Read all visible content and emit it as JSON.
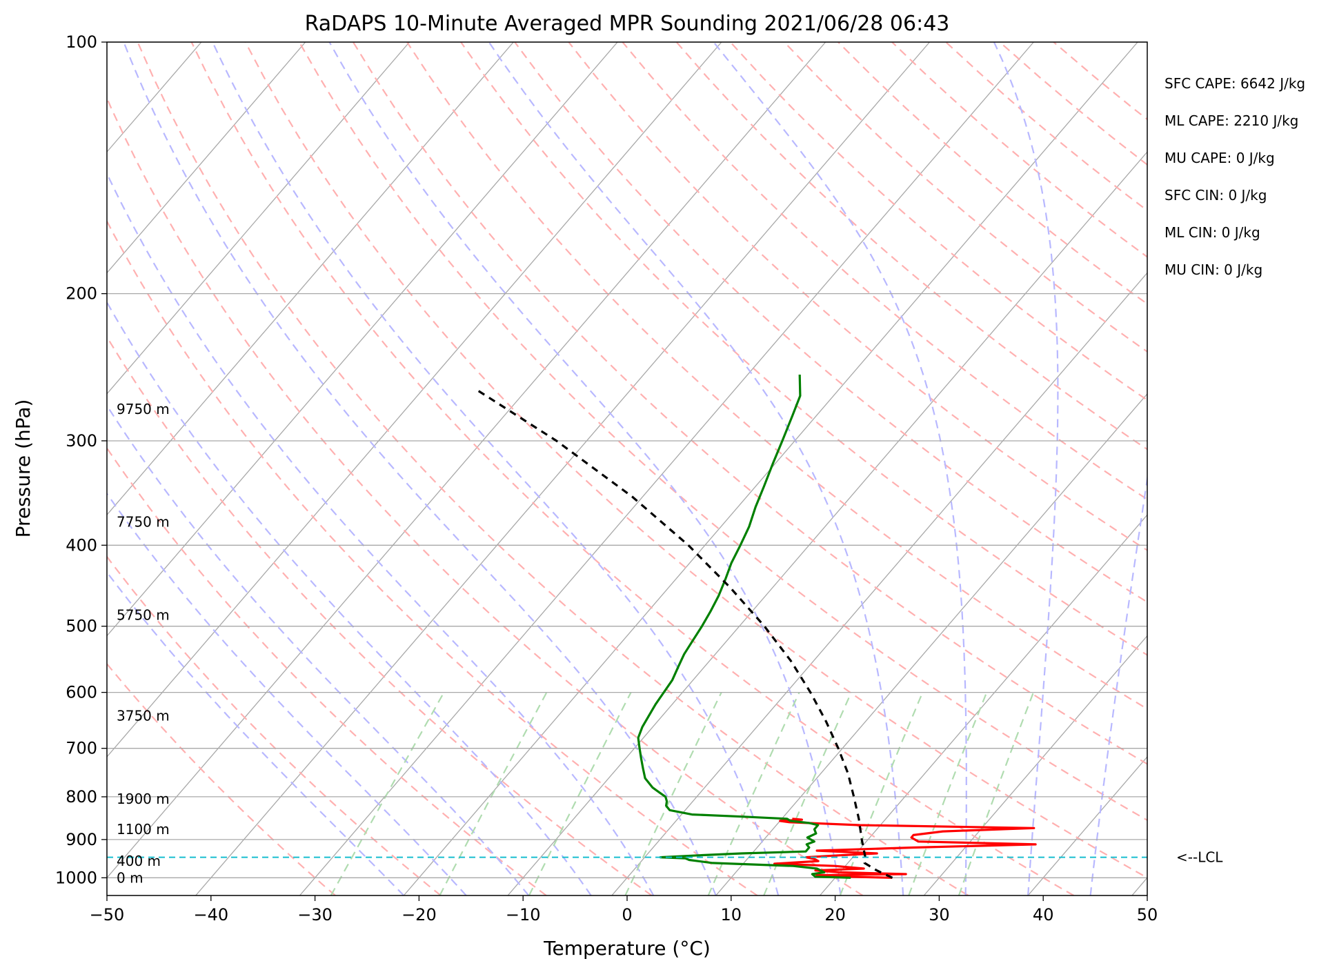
{
  "chart_data": {
    "type": "line",
    "title": "RaDAPS 10-Minute Averaged MPR Sounding 2021/06/28 06:43",
    "xlabel": "Temperature (°C)",
    "ylabel": "Pressure (hPa)",
    "xlim": [
      -50,
      50
    ],
    "ylim": [
      1050,
      100
    ],
    "y_scale": "log",
    "x_ticks": [
      -50,
      -40,
      -30,
      -20,
      -10,
      0,
      10,
      20,
      30,
      40,
      50
    ],
    "x_tick_labels": [
      "−50",
      "−40",
      "−30",
      "−20",
      "−10",
      "0",
      "10",
      "20",
      "30",
      "40",
      "50"
    ],
    "y_ticks": [
      100,
      200,
      300,
      400,
      500,
      600,
      700,
      800,
      900,
      1000
    ],
    "y_tick_labels": [
      "100",
      "200",
      "300",
      "400",
      "500",
      "600",
      "700",
      "800",
      "900",
      "1000"
    ],
    "grid": true,
    "background_lines": [
      "isotherms (skewed)",
      "dry adiabats",
      "moist adiabats",
      "mixing ratio lines"
    ],
    "series": [
      {
        "name": "",
        "color": "#ff0000",
        "pressure": [
          1000,
          997,
          993,
          990,
          985,
          980,
          975,
          968,
          962,
          955,
          950,
          945,
          940,
          935,
          928,
          920,
          912,
          905,
          900,
          895,
          889,
          880,
          872,
          865,
          858,
          855,
          852,
          850
        ],
        "temperature": [
          25.5,
          21,
          18,
          26.5,
          20,
          17.5,
          22,
          19,
          13,
          17,
          16.5,
          15.5,
          18.5,
          22,
          16,
          25,
          36.5,
          25,
          24.5,
          24,
          24,
          26.5,
          35,
          18,
          11,
          10,
          12,
          11
        ]
      },
      {
        "name": "",
        "color": "#008000",
        "pressure": [
          1000,
          997,
          990,
          985,
          975,
          968,
          960,
          952,
          948,
          945,
          940,
          935,
          930,
          920,
          912,
          905,
          895,
          885,
          875,
          865,
          860,
          855,
          850,
          845,
          840,
          830,
          820,
          810,
          800,
          790,
          780,
          760,
          740,
          720,
          700,
          680,
          660,
          640,
          620,
          600,
          580,
          560,
          540,
          520,
          500,
          480,
          460,
          440,
          420,
          400,
          380,
          360,
          340,
          320,
          300,
          280,
          265,
          250
        ],
        "temperature": [
          21.5,
          18,
          17.5,
          18.5,
          17.5,
          15,
          7,
          4.5,
          4,
          1.5,
          5,
          9,
          15,
          15,
          14.5,
          15,
          14,
          14.5,
          14,
          14,
          13,
          11,
          10.5,
          6,
          1,
          -1.5,
          -2.2,
          -2.5,
          -3,
          -4,
          -5,
          -6.5,
          -7.5,
          -8.5,
          -9.5,
          -10.5,
          -11,
          -11.3,
          -11.6,
          -11.8,
          -12,
          -12.5,
          -13,
          -13.3,
          -13.6,
          -14,
          -14.5,
          -15.2,
          -16,
          -16.6,
          -17.3,
          -18.3,
          -19.2,
          -20.2,
          -21.2,
          -22.3,
          -23.2,
          -25
        ]
      },
      {
        "name": "",
        "color": "#000000",
        "dashed": true,
        "pressure": [
          1000,
          980,
          960,
          945,
          900,
          850,
          800,
          750,
          700,
          650,
          600,
          550,
          500,
          450,
          400,
          350,
          300,
          260
        ],
        "temperature": [
          25.5,
          23.4,
          21.6,
          21.2,
          19.4,
          17.4,
          15.1,
          12.6,
          9.6,
          6.2,
          2.3,
          -2.2,
          -7.6,
          -14.0,
          -21.6,
          -31.0,
          -42.9,
          -55.0
        ]
      }
    ],
    "lcl": {
      "pressure": 945,
      "label": "<--LCL",
      "color": "#17becf"
    },
    "height_labels": [
      {
        "pressure": 1000,
        "label": "0 m"
      },
      {
        "pressure": 955,
        "label": "400 m"
      },
      {
        "pressure": 875,
        "label": "1100 m"
      },
      {
        "pressure": 805,
        "label": "1900 m"
      },
      {
        "pressure": 640,
        "label": "3750 m"
      },
      {
        "pressure": 485,
        "label": "5750 m"
      },
      {
        "pressure": 375,
        "label": "7750 m"
      },
      {
        "pressure": 275,
        "label": "9750 m"
      }
    ],
    "stats": [
      "SFC CAPE: 6642 J/kg",
      "ML CAPE: 2210 J/kg",
      "MU CAPE: 0 J/kg",
      "SFC CIN: 0 J/kg",
      "ML CIN: 0 J/kg",
      "MU CIN: 0 J/kg"
    ]
  }
}
